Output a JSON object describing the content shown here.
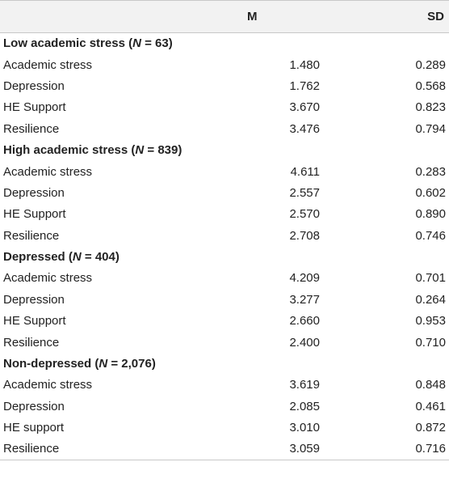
{
  "columns": {
    "label": "",
    "m": "M",
    "sd": "SD"
  },
  "groups": [
    {
      "title_prefix": "Low academic stress (",
      "n_symbol": "N",
      "title_suffix": " = 63)",
      "rows": [
        {
          "label": "Academic stress",
          "m": "1.480",
          "sd": "0.289"
        },
        {
          "label": "Depression",
          "m": "1.762",
          "sd": "0.568"
        },
        {
          "label": "HE Support",
          "m": "3.670",
          "sd": "0.823"
        },
        {
          "label": "Resilience",
          "m": "3.476",
          "sd": "0.794"
        }
      ]
    },
    {
      "title_prefix": "High academic stress (",
      "n_symbol": "N",
      "title_suffix": " = 839)",
      "rows": [
        {
          "label": "Academic stress",
          "m": "4.611",
          "sd": "0.283"
        },
        {
          "label": "Depression",
          "m": "2.557",
          "sd": "0.602"
        },
        {
          "label": "HE Support",
          "m": "2.570",
          "sd": "0.890"
        },
        {
          "label": "Resilience",
          "m": "2.708",
          "sd": "0.746"
        }
      ]
    },
    {
      "title_prefix": "Depressed (",
      "n_symbol": "N",
      "title_suffix": " = 404)",
      "rows": [
        {
          "label": "Academic stress",
          "m": "4.209",
          "sd": "0.701"
        },
        {
          "label": "Depression",
          "m": "3.277",
          "sd": "0.264"
        },
        {
          "label": "HE Support",
          "m": "2.660",
          "sd": "0.953"
        },
        {
          "label": "Resilience",
          "m": "2.400",
          "sd": "0.710"
        }
      ]
    },
    {
      "title_prefix": "Non-depressed (",
      "n_symbol": "N",
      "title_suffix": " = 2,076)",
      "rows": [
        {
          "label": "Academic stress",
          "m": "3.619",
          "sd": "0.848"
        },
        {
          "label": "Depression",
          "m": "2.085",
          "sd": "0.461"
        },
        {
          "label": "HE support",
          "m": "3.010",
          "sd": "0.872"
        },
        {
          "label": "Resilience",
          "m": "3.059",
          "sd": "0.716"
        }
      ]
    }
  ]
}
